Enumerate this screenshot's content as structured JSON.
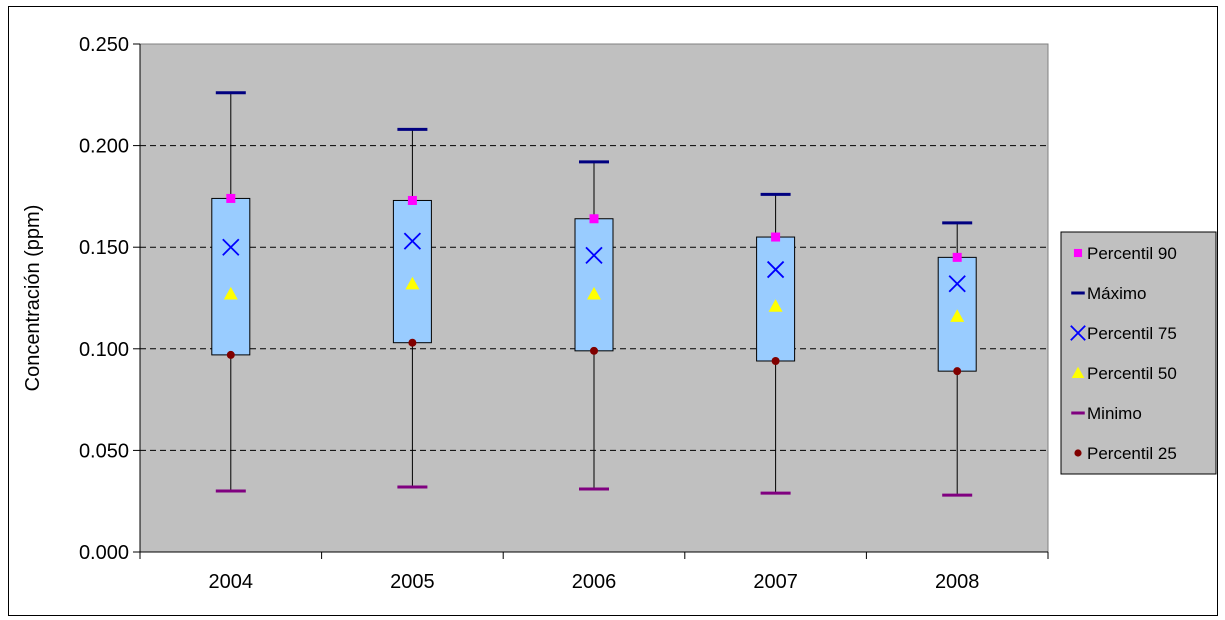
{
  "chart_data": {
    "type": "box",
    "title": "",
    "xlabel": "",
    "ylabel": "Concentración (ppm)",
    "ylim": [
      0,
      0.25
    ],
    "yticks": [
      "0.000",
      "0.050",
      "0.100",
      "0.150",
      "0.200",
      "0.250"
    ],
    "categories": [
      "2004",
      "2005",
      "2006",
      "2007",
      "2008"
    ],
    "grid": "horizontal dashed",
    "legend_position": "right",
    "plot_background": "#c0c0c0",
    "box_color": "#99ccff",
    "series": [
      {
        "name": "Percentil 90",
        "marker": "square",
        "color": "#ff00ff",
        "values": [
          0.174,
          0.173,
          0.164,
          0.155,
          0.145
        ]
      },
      {
        "name": "Máximo",
        "marker": "dash",
        "color": "#000080",
        "values": [
          0.226,
          0.208,
          0.192,
          0.176,
          0.162
        ]
      },
      {
        "name": "Percentil 75",
        "marker": "x",
        "color": "#0000ff",
        "values": [
          0.15,
          0.153,
          0.146,
          0.139,
          0.132
        ]
      },
      {
        "name": "Percentil 50",
        "marker": "triangle",
        "color": "#ffff00",
        "values": [
          0.127,
          0.132,
          0.127,
          0.121,
          0.116
        ]
      },
      {
        "name": "Minimo",
        "marker": "dash",
        "color": "#800080",
        "values": [
          0.03,
          0.032,
          0.031,
          0.029,
          0.028
        ]
      },
      {
        "name": "Percentil 25",
        "marker": "circle",
        "color": "#800000",
        "values": [
          0.097,
          0.103,
          0.099,
          0.094,
          0.089
        ]
      }
    ]
  }
}
